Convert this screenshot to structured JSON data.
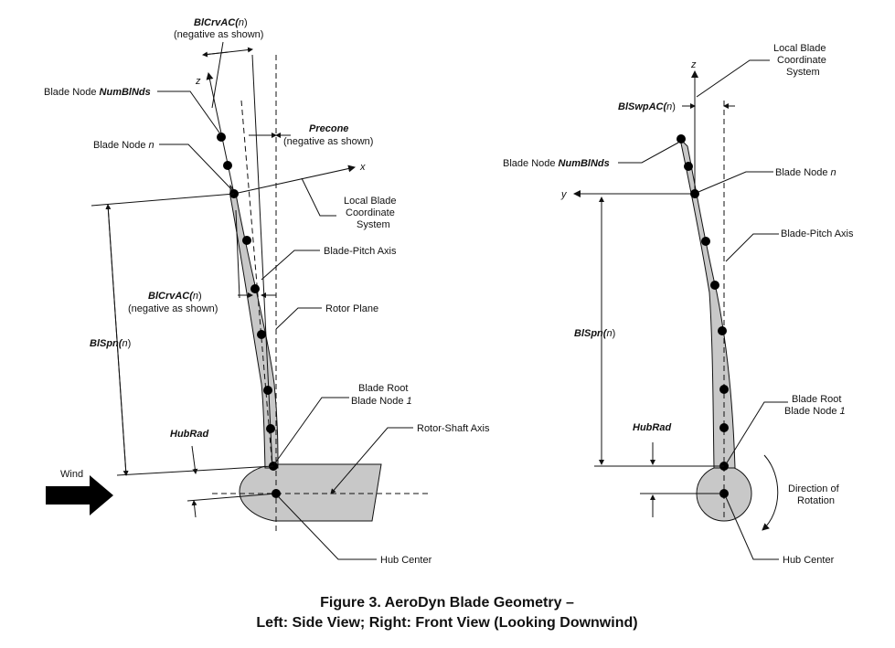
{
  "side_view": {
    "blcrvac_top_a": "BlCrvAC(",
    "blcrvac_top_b": "n",
    "blcrvac_top_c": ")",
    "blcrvac_top_note": "(negative as shown)",
    "z_axis": "z",
    "x_axis": "x",
    "node_numblnds_a": "Blade Node ",
    "node_numblnds_b": "NumBlNds",
    "node_n_a": "Blade Node ",
    "node_n_b": "n",
    "precone": "Precone",
    "precone_note": "(negative as shown)",
    "local_cs_1": "Local Blade",
    "local_cs_2": "Coordinate",
    "local_cs_3": "System",
    "pitch_axis": "Blade-Pitch Axis",
    "blcrvac_mid_a": "BlCrvAC(",
    "blcrvac_mid_b": "n",
    "blcrvac_mid_c": ")",
    "blcrvac_mid_note": "(negative as shown)",
    "rotor_plane": "Rotor Plane",
    "blspn_a": "BlSpn(",
    "blspn_b": "n",
    "blspn_c": ")",
    "root_1": "Blade Root",
    "root_2a": "Blade Node ",
    "root_2b": "1",
    "hubrad": "HubRad",
    "shaft_axis": "Rotor-Shaft Axis",
    "wind": "Wind",
    "hub_center": "Hub Center"
  },
  "front_view": {
    "z_axis": "z",
    "y_axis": "y",
    "local_cs_1": "Local Blade",
    "local_cs_2": "Coordinate",
    "local_cs_3": "System",
    "blswpac_a": "BlSwpAC(",
    "blswpac_b": "n",
    "blswpac_c": ")",
    "node_numblnds_a": "Blade Node ",
    "node_numblnds_b": "NumBlNds",
    "node_n_a": "Blade Node ",
    "node_n_b": "n",
    "pitch_axis": "Blade-Pitch Axis",
    "blspn_a": "BlSpn(",
    "blspn_b": "n",
    "blspn_c": ")",
    "hubrad": "HubRad",
    "root_1": "Blade Root",
    "root_2a": "Blade Node ",
    "root_2b": "1",
    "rotation_1": "Direction of",
    "rotation_2": "Rotation",
    "hub_center": "Hub Center"
  },
  "caption": {
    "line1": "Figure 3. AeroDyn Blade Geometry –",
    "line2": "Left: Side View; Right: Front View (Looking Downwind)"
  }
}
